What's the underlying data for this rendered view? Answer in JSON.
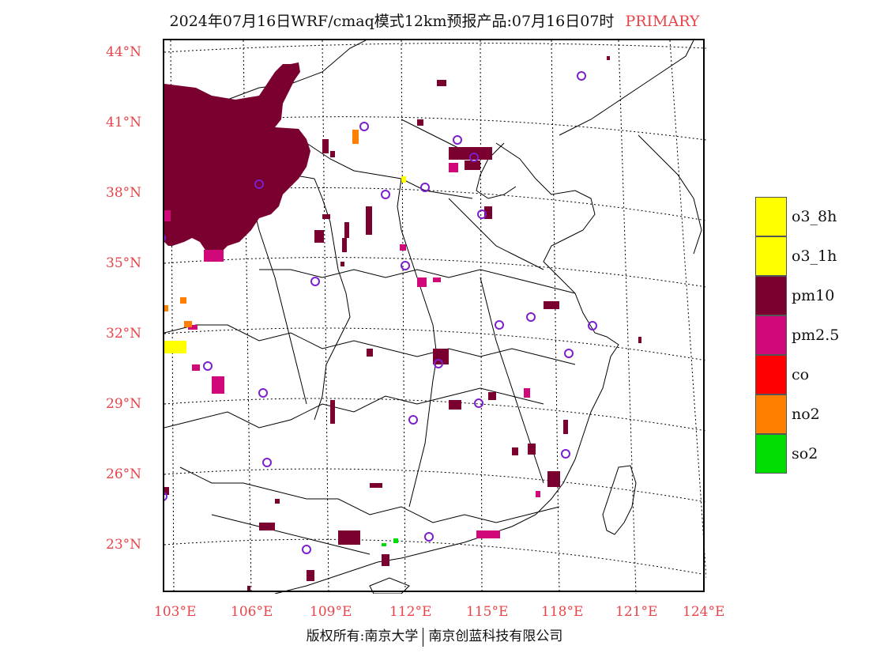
{
  "title": {
    "main": "2024年07月16日WRF/cmaq模式12km预报产品:07月16日07时",
    "tag": "PRIMARY"
  },
  "axes": {
    "lat_labels": [
      "44°N",
      "41°N",
      "38°N",
      "35°N",
      "32°N",
      "29°N",
      "26°N",
      "23°N"
    ],
    "lon_labels": [
      "103°E",
      "106°E",
      "109°E",
      "112°E",
      "115°E",
      "118°E",
      "121°E",
      "124°E"
    ]
  },
  "legend": [
    {
      "label": "o3_8h",
      "color": "#ffff00"
    },
    {
      "label": "o3_1h",
      "color": "#ffff00"
    },
    {
      "label": "pm10",
      "color": "#7a0030"
    },
    {
      "label": "pm2.5",
      "color": "#d0087a"
    },
    {
      "label": "co",
      "color": "#ff0000"
    },
    {
      "label": "no2",
      "color": "#ff8000"
    },
    {
      "label": "so2",
      "color": "#00dd00"
    }
  ],
  "footer": {
    "left": "版权所有:南京大学",
    "right": "南京创蓝科技有限公司"
  },
  "colors": {
    "label_red": "#e8444a",
    "pm10": "#7a0030",
    "pm25": "#d0087a",
    "station_ring": "#7b1fd0"
  }
}
